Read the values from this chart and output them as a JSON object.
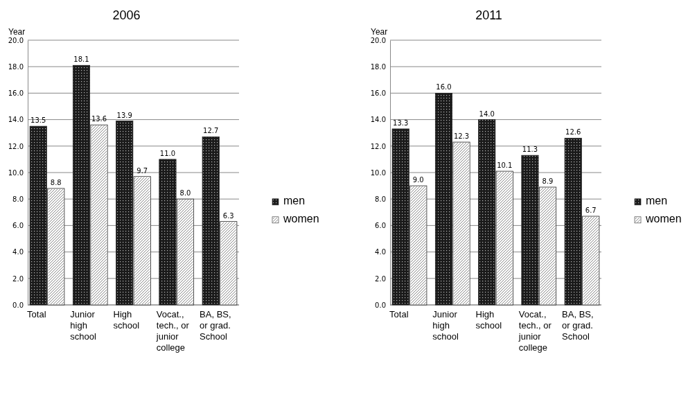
{
  "chart_data": [
    {
      "type": "bar",
      "title": "2006",
      "ylabel": "Year",
      "categories": [
        "Total",
        "Junior high school",
        "High school",
        "Vocat., tech., or junior college",
        "BA, BS, or grad. School"
      ],
      "ylim": [
        0,
        20
      ],
      "yticks": [
        {
          "value": 0,
          "label": "0.0"
        },
        {
          "value": 2,
          "label": "2.0"
        },
        {
          "value": 4,
          "label": "4.0"
        },
        {
          "value": 6,
          "label": "6.0"
        },
        {
          "value": 8,
          "label": "8.0"
        },
        {
          "value": 10,
          "label": "10.0"
        },
        {
          "value": 12,
          "label": "12.0"
        },
        {
          "value": 14,
          "label": "14.0"
        },
        {
          "value": 16,
          "label": "16.0"
        },
        {
          "value": 18,
          "label": "18.0"
        },
        {
          "value": 20,
          "label": "20.0"
        }
      ],
      "grid": "y",
      "legend": "right",
      "series": [
        {
          "name": "men",
          "color": "#1a1a1a",
          "values": [
            13.5,
            18.1,
            13.9,
            11.0,
            12.7
          ],
          "value_labels": [
            "13.5",
            "18.1",
            "13.9",
            "11.0",
            "12.7"
          ]
        },
        {
          "name": "women",
          "color": "#ffffff",
          "values": [
            8.8,
            13.6,
            9.7,
            8.0,
            6.3
          ],
          "value_labels": [
            "8.8",
            "13.6",
            "9.7",
            "8.0",
            "6.3"
          ]
        }
      ]
    },
    {
      "type": "bar",
      "title": "2011",
      "ylabel": "Year",
      "categories": [
        "Total",
        "Junior high school",
        "High school",
        "Vocat., tech., or junior college",
        "BA, BS, or grad. School"
      ],
      "ylim": [
        0,
        20
      ],
      "yticks": [
        {
          "value": 0,
          "label": "0.0"
        },
        {
          "value": 2,
          "label": "2.0"
        },
        {
          "value": 4,
          "label": "4.0"
        },
        {
          "value": 6,
          "label": "6.0"
        },
        {
          "value": 8,
          "label": "8.0"
        },
        {
          "value": 10,
          "label": "10.0"
        },
        {
          "value": 12,
          "label": "12.0"
        },
        {
          "value": 14,
          "label": "14.0"
        },
        {
          "value": 16,
          "label": "16.0"
        },
        {
          "value": 18,
          "label": "18.0"
        },
        {
          "value": 20,
          "label": "20.0"
        }
      ],
      "grid": "y",
      "legend": "right",
      "series": [
        {
          "name": "men",
          "color": "#1a1a1a",
          "values": [
            13.3,
            16.0,
            14.0,
            11.3,
            12.6
          ],
          "value_labels": [
            "13.3",
            "16.0",
            "14.0",
            "11.3",
            "12.6"
          ]
        },
        {
          "name": "women",
          "color": "#ffffff",
          "values": [
            9.0,
            12.3,
            10.1,
            8.9,
            6.7
          ],
          "value_labels": [
            "9.0",
            "12.3",
            "10.1",
            "8.9",
            "6.7"
          ]
        }
      ]
    }
  ]
}
